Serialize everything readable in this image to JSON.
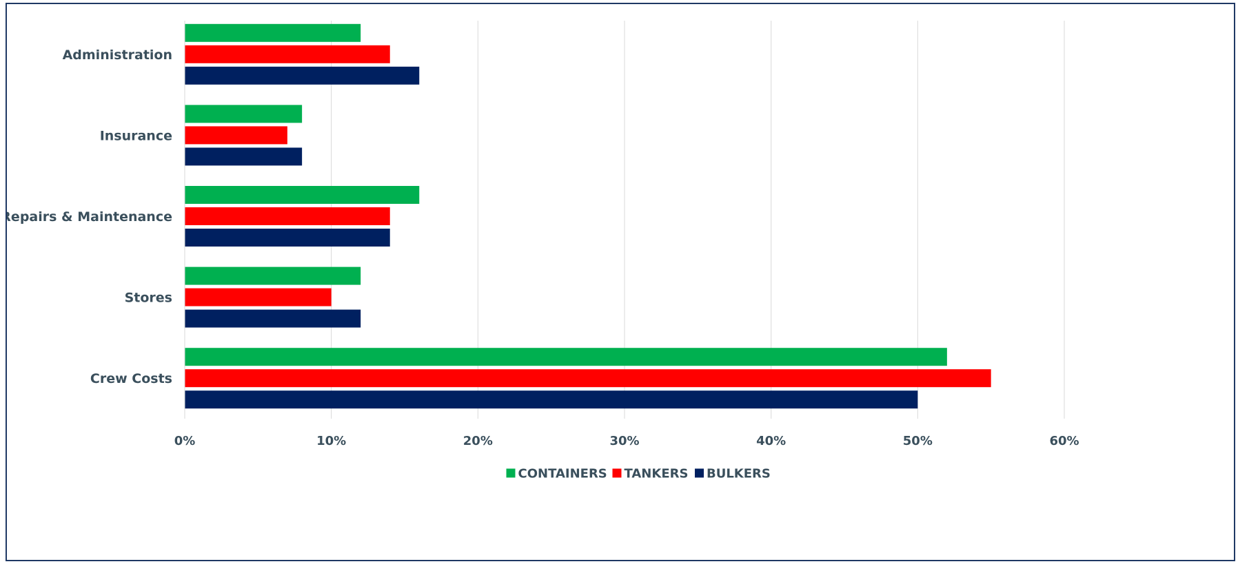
{
  "chart_data": {
    "type": "bar",
    "orientation": "horizontal",
    "categories": [
      "Administration",
      "Insurance",
      "Repairs & Maintenance",
      "Stores",
      "Crew Costs"
    ],
    "series": [
      {
        "name": "CONTAINERS",
        "color": "#00b050",
        "values": [
          12,
          8,
          16,
          12,
          52
        ]
      },
      {
        "name": "TANKERS",
        "color": "#ff0000",
        "values": [
          14,
          7,
          14,
          10,
          55
        ]
      },
      {
        "name": "BULKERS",
        "color": "#002060",
        "values": [
          16,
          8,
          14,
          12,
          50
        ]
      }
    ],
    "x_ticks": [
      "0%",
      "10%",
      "20%",
      "30%",
      "40%",
      "50%",
      "60%"
    ],
    "xlim": [
      0,
      60
    ],
    "grid": "vertical",
    "legend_position": "bottom",
    "title": "",
    "xlabel": "",
    "ylabel": ""
  }
}
